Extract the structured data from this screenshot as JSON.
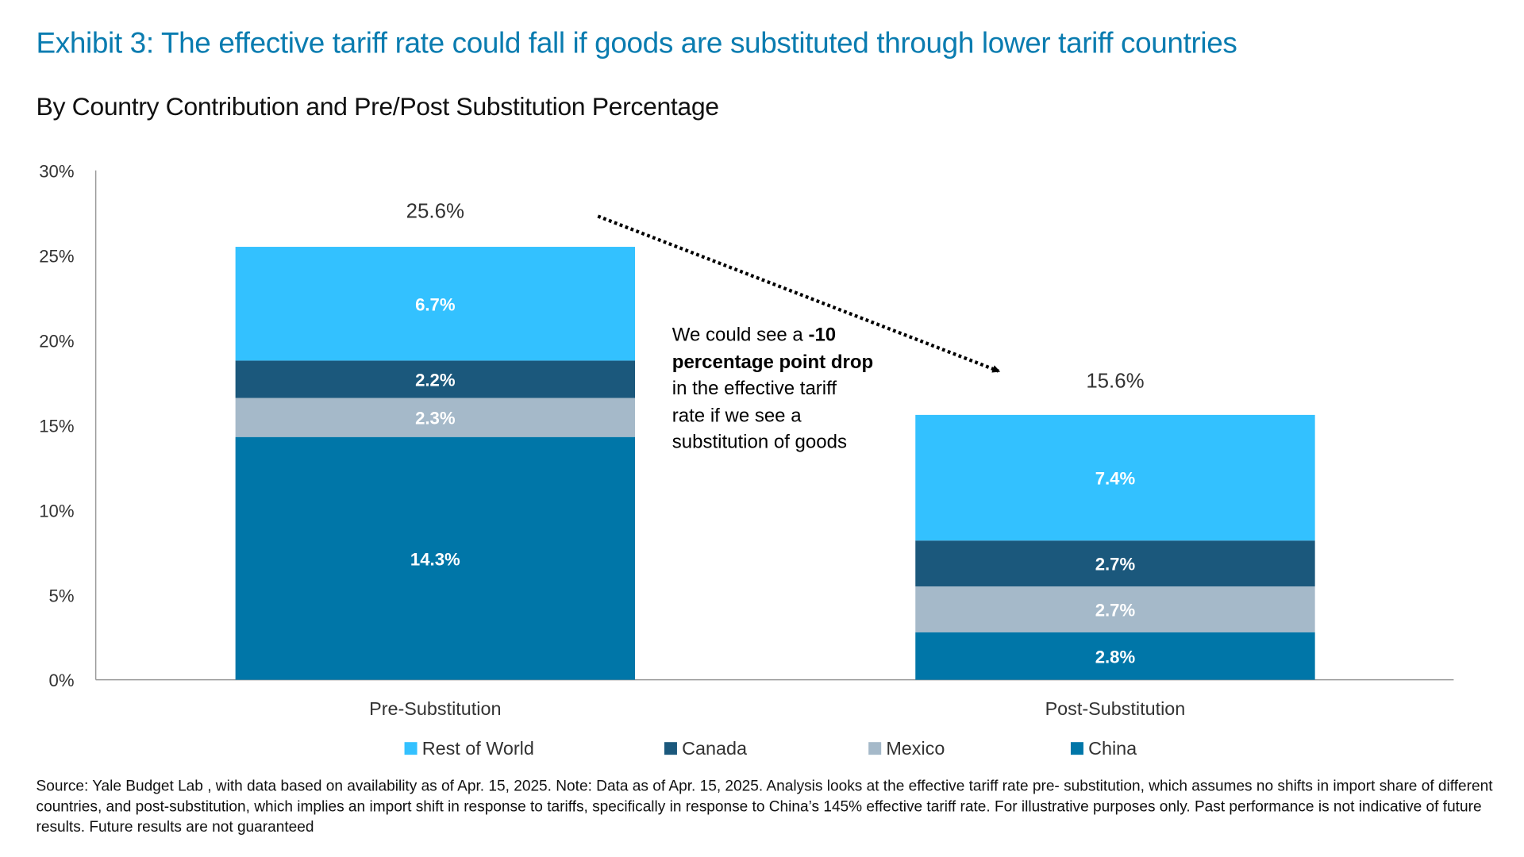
{
  "title": "Exhibit 3: The effective tariff rate could fall if goods are substituted through lower tariff countries",
  "subtitle": "By Country Contribution and Pre/Post Substitution Percentage",
  "annotation": {
    "pre": "We could see a ",
    "bold": "-10 percentage point drop",
    "post": " in the effective tariff rate if we see a substitution of goods",
    "line1a": "We could see a ",
    "line1b": "-10",
    "line2": "percentage point drop",
    "line3": "in the effective tariff",
    "line4": "rate if we see a",
    "line5": "substitution of goods"
  },
  "footnote": "Source: Yale Budget Lab , with data based on availability as of Apr. 15, 2025. Note: Data as of Apr. 15, 2025. Analysis looks at the effective tariff rate pre- substitution, which assumes no shifts in import share of different countries, and post-substitution, which implies an import shift in response to tariffs, specifically in response to China’s 145% effective tariff rate. For illustrative purposes only. Past performance is not indicative of future results. Future results are not guaranteed",
  "chart_data": {
    "type": "bar",
    "stacked": true,
    "categories": [
      "Pre-Substitution",
      "Post-Substitution"
    ],
    "series": [
      {
        "name": "China",
        "values": [
          14.3,
          2.8
        ],
        "labels": [
          "14.3%",
          "2.8%"
        ],
        "color": "#0076A8"
      },
      {
        "name": "Mexico",
        "values": [
          2.3,
          2.7
        ],
        "labels": [
          "2.3%",
          "2.7%"
        ],
        "color": "#A5B9C9"
      },
      {
        "name": "Canada",
        "values": [
          2.2,
          2.7
        ],
        "labels": [
          "2.2%",
          "2.7%"
        ],
        "color": "#1B587C"
      },
      {
        "name": "Rest of World",
        "values": [
          6.7,
          7.4
        ],
        "labels": [
          "6.7%",
          "7.4%"
        ],
        "color": "#33C1FF"
      }
    ],
    "totals": [
      "25.6%",
      "15.6%"
    ],
    "total_values": [
      25.6,
      15.6
    ],
    "ylim": [
      0,
      30
    ],
    "yticks": [
      "0%",
      "5%",
      "10%",
      "15%",
      "20%",
      "25%",
      "30%"
    ],
    "legend_order": [
      "Rest of World",
      "Canada",
      "Mexico",
      "China"
    ],
    "legend_position": "bottom",
    "grid": false
  }
}
